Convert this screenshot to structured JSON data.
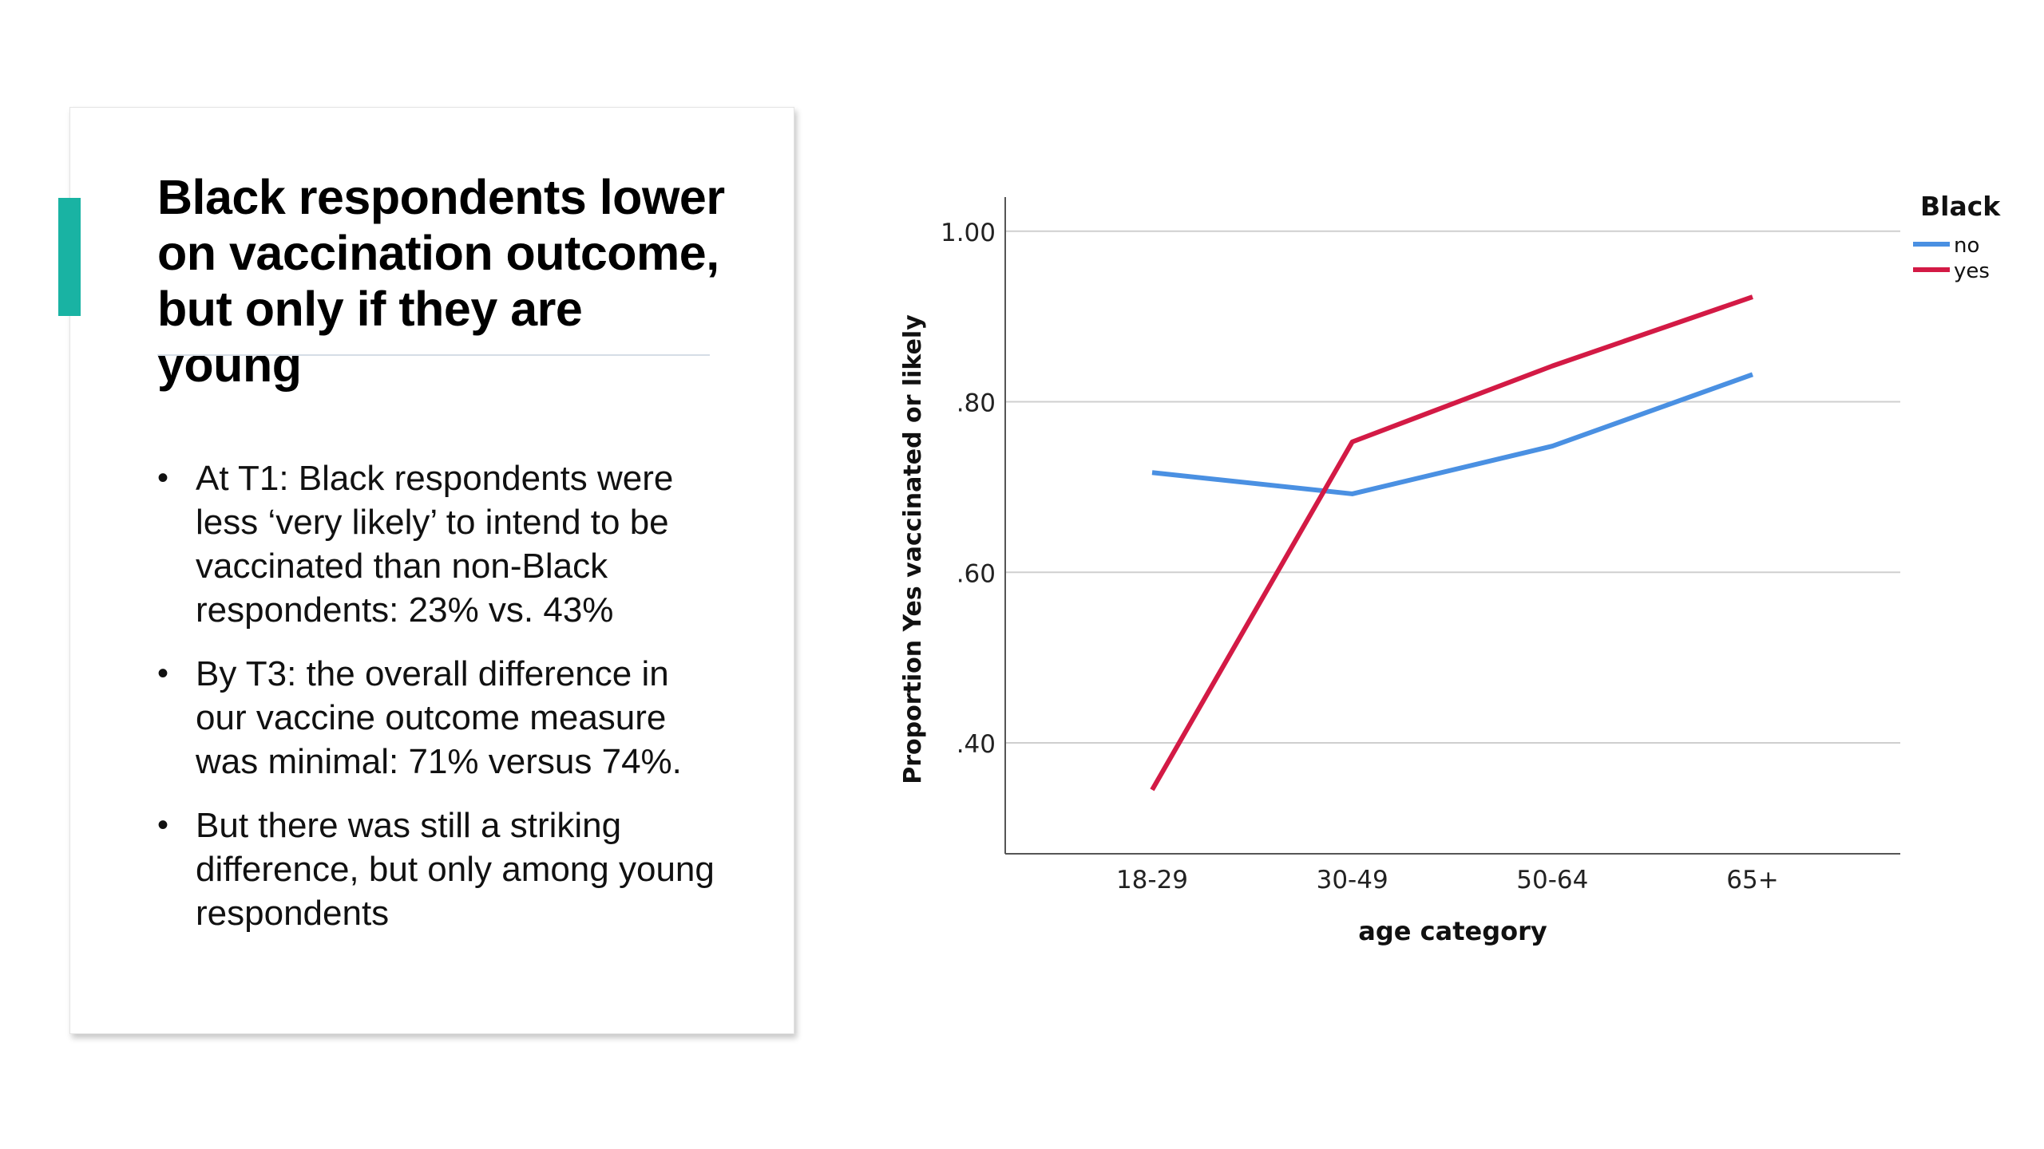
{
  "slide": {
    "title": "Black respondents lower on vaccination outcome, but only if they are young",
    "bullets": [
      "At T1: Black respondents were less ‘very likely’ to intend to be vaccinated than non-Black respondents: 23% vs. 43%",
      "By T3: the overall difference in our vaccine outcome measure was minimal: 71% versus 74%.",
      "But there was still a striking difference, but only among young respondents"
    ],
    "bullet_glyph": "•",
    "accent_color": "#19b3a3"
  },
  "chart_data": {
    "type": "line",
    "categories": [
      "18-29",
      "30-49",
      "50-64",
      "65+"
    ],
    "series": [
      {
        "name": "no",
        "values": [
          0.717,
          0.692,
          0.748,
          0.832
        ],
        "color": "#4a90e2"
      },
      {
        "name": "yes",
        "values": [
          0.345,
          0.753,
          0.842,
          0.923
        ],
        "color": "#d31a45"
      }
    ],
    "title": "",
    "xlabel": "age category",
    "ylabel": "Proportion Yes vaccinated or likely",
    "ylim": [
      0.27,
      1.04
    ],
    "yticks": [
      0.4,
      0.6,
      0.8,
      1.0
    ],
    "ytick_labels": [
      ".40",
      ".60",
      ".80",
      "1.00"
    ],
    "grid": "horizontal",
    "legend": {
      "title": "Black",
      "placement": "top-right"
    }
  }
}
